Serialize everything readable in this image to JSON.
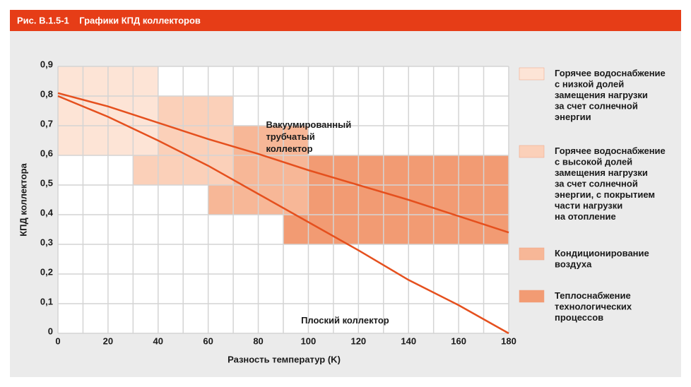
{
  "chart_data": {
    "type": "line",
    "title": "Рис. B.1.5-1    Графики КПД коллекторов",
    "x_label": "Разность температур (K)",
    "y_label": "КПД коллектора",
    "xlim": [
      0,
      180
    ],
    "ylim": [
      0,
      0.9
    ],
    "xticks": [
      0,
      20,
      40,
      60,
      80,
      100,
      120,
      140,
      160,
      180
    ],
    "xminor": [
      10,
      30,
      50,
      70,
      90,
      110,
      130,
      150,
      170
    ],
    "yticks": [
      0,
      {
        "value": 0.1,
        "label": "0,1"
      },
      {
        "value": 0.2,
        "label": "0,2"
      },
      {
        "value": 0.3,
        "label": "0,3"
      },
      {
        "value": 0.4,
        "label": "0,4"
      },
      {
        "value": 0.5,
        "label": "0,5"
      },
      {
        "value": 0.6,
        "label": "0,6"
      },
      {
        "value": 0.7,
        "label": "0,7"
      },
      {
        "value": 0.8,
        "label": "0,8"
      },
      {
        "value": 0.9,
        "label": "0,9"
      }
    ],
    "grid": true,
    "regions": [
      {
        "name": [
          "Горячее водоснабжение",
          "с низкой долей",
          "замещения нагрузки",
          "за счет солнечной",
          "энергии"
        ],
        "color": "#fde4d6",
        "x": [
          0,
          40
        ],
        "y": [
          0.6,
          0.9
        ]
      },
      {
        "name": [
          "Горячее водоснабжение",
          "с высокой долей",
          "замещения нагрузки",
          "за счет солнечной",
          "энергии, с покрытием",
          "части нагрузки",
          "на отопление"
        ],
        "color": "#fbd0b9",
        "x": [
          30,
          70
        ],
        "y": [
          0.5,
          0.8
        ]
      },
      {
        "name": [
          "Кондиционирование",
          "воздуха"
        ],
        "color": "#f7b797",
        "x": [
          60,
          100
        ],
        "y": [
          0.4,
          0.7
        ]
      },
      {
        "name": [
          "Теплоснабжение",
          "технологических",
          "процессов"
        ],
        "color": "#f29b73",
        "x": [
          90,
          180
        ],
        "y": [
          0.3,
          0.6
        ]
      }
    ],
    "x": [
      0,
      20,
      40,
      60,
      80,
      100,
      120,
      140,
      160,
      180
    ],
    "series": [
      {
        "name": [
          "Вакуумированный",
          "трубчатый",
          "коллектор"
        ],
        "color": "#e5501e",
        "values": [
          0.81,
          0.765,
          0.71,
          0.655,
          0.605,
          0.55,
          0.5,
          0.45,
          0.395,
          0.34
        ],
        "label_at": [
          100,
          0.7
        ]
      },
      {
        "name": [
          "Плоский коллектор"
        ],
        "color": "#e5501e",
        "values": [
          0.8,
          0.73,
          0.65,
          0.565,
          0.47,
          0.375,
          0.28,
          0.18,
          0.095,
          0
        ],
        "label_at": [
          114,
          0.04
        ]
      }
    ]
  }
}
